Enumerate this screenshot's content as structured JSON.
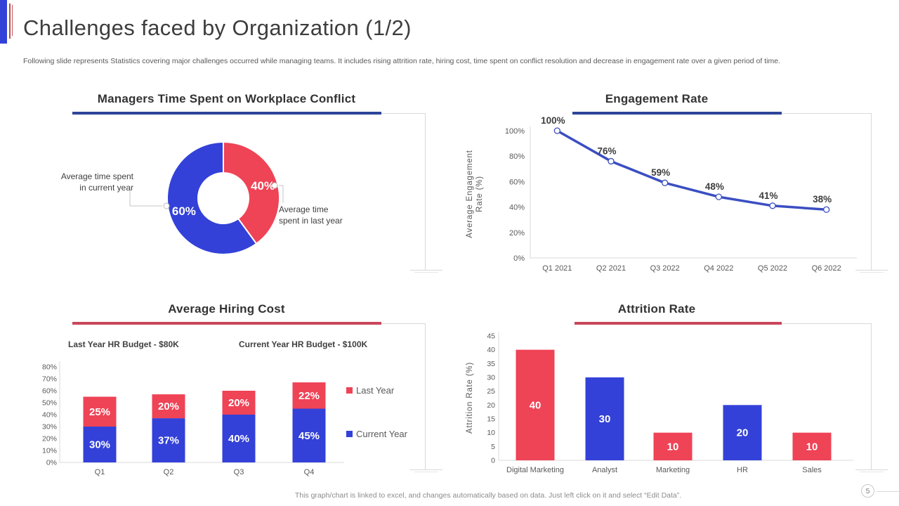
{
  "slide": {
    "title": "Challenges faced by Organization (1/2)",
    "subtitle": "Following slide represents Statistics covering major challenges occurred while managing teams. It includes rising attrition rate, hiring cost, time spent on conflict resolution and decrease in engagement rate over a given period of time.",
    "footer": "This graph/chart is linked to excel,  and changes automatically based on data. Just left click on it and select “Edit Data”.",
    "page_number": "5"
  },
  "colors": {
    "blue": "#3341d8",
    "red": "#ef4356",
    "line_blue": "#3b4ec2",
    "underline_blue": "#2e4699",
    "underline_red": "#c9475b",
    "axis_gray": "#d9d9d9",
    "leader_gray": "#c4c4c4",
    "text_dark": "#3d3d3d",
    "text_gray": "#595959",
    "white": "#ffffff"
  },
  "chart_data": [
    {
      "id": "conflict_donut",
      "type": "pie",
      "title": "Managers Time Spent on Workplace Conflict",
      "slices": [
        {
          "label": "Average time spent in last year",
          "value": 40,
          "display": "40%",
          "color": "red"
        },
        {
          "label": "Average time spent in current year",
          "value": 60,
          "display": "60%",
          "color": "blue"
        }
      ],
      "callout_left": {
        "line1": "Average  time spent",
        "line2": "in current year"
      },
      "callout_right": {
        "line1": "Average  time",
        "line2": "spent in last year"
      }
    },
    {
      "id": "engagement_line",
      "type": "line",
      "title": "Engagement Rate",
      "ylabel_line1": "Average Engagement",
      "ylabel_line2": "Rate (%)",
      "categories": [
        "Q1 2021",
        "Q2 2021",
        "Q3 2022",
        "Q4 2022",
        "Q5 2022",
        "Q6 2022"
      ],
      "values": [
        100,
        76,
        59,
        48,
        41,
        38
      ],
      "point_labels": [
        "100%",
        "76%",
        "59%",
        "48%",
        "41%",
        "38%"
      ],
      "ylim": [
        0,
        100
      ],
      "ytick_values": [
        0,
        20,
        40,
        60,
        80,
        100
      ],
      "ytick_labels": [
        "0%",
        "20%",
        "40%",
        "60%",
        "80%",
        "100%"
      ]
    },
    {
      "id": "hiring_stacked_bar",
      "type": "bar",
      "title": "Average Hiring Cost",
      "annotations": [
        "Last Year HR  Budget  - $80K",
        "Current Year HR  Budget  - $100K"
      ],
      "categories": [
        "Q1",
        "Q2",
        "Q3",
        "Q4"
      ],
      "series": [
        {
          "name": "Current Year",
          "color": "blue",
          "values": [
            30,
            37,
            40,
            45
          ],
          "labels": [
            "30%",
            "37%",
            "40%",
            "45%"
          ]
        },
        {
          "name": "Last Year",
          "color": "red",
          "values": [
            25,
            20,
            20,
            22
          ],
          "labels": [
            "25%",
            "20%",
            "20%",
            "22%"
          ]
        }
      ],
      "legend": [
        {
          "label": "Last Year",
          "color": "red"
        },
        {
          "label": "Current Year",
          "color": "blue"
        }
      ],
      "ylim": [
        0,
        80
      ],
      "ytick_values": [
        0,
        10,
        20,
        30,
        40,
        50,
        60,
        70,
        80
      ],
      "ytick_labels": [
        "0%",
        "10%",
        "20%",
        "30%",
        "40%",
        "50%",
        "60%",
        "70%",
        "80%"
      ]
    },
    {
      "id": "attrition_bar",
      "type": "bar",
      "title": "Attrition Rate",
      "ylabel": "Attrition Rate (%)",
      "categories": [
        "Digital Marketing",
        "Analyst",
        "Marketing",
        "HR",
        "Sales"
      ],
      "values": [
        40,
        30,
        10,
        20,
        10
      ],
      "value_labels": [
        "40",
        "30",
        "10",
        "20",
        "10"
      ],
      "bar_colors": [
        "red",
        "blue",
        "red",
        "blue",
        "red"
      ],
      "ylim": [
        0,
        45
      ],
      "ytick_values": [
        0,
        5,
        10,
        15,
        20,
        25,
        30,
        35,
        40,
        45
      ],
      "ytick_labels": [
        "0",
        "5",
        "10",
        "15",
        "20",
        "25",
        "30",
        "35",
        "40",
        "45"
      ]
    }
  ]
}
